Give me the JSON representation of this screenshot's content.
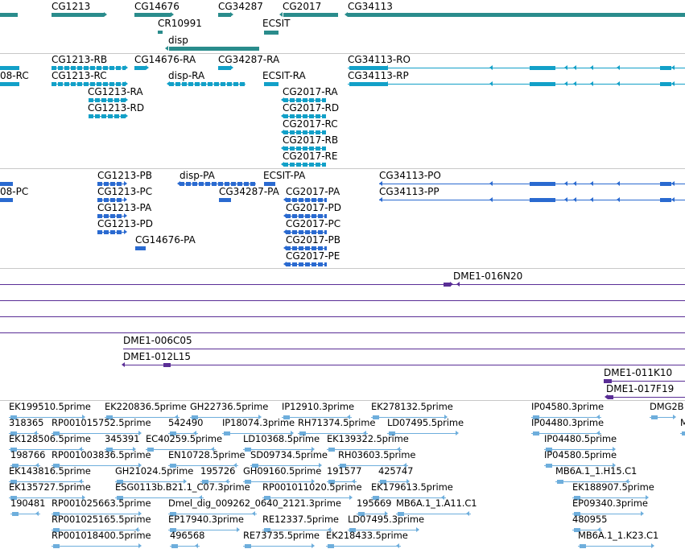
{
  "colors": {
    "gene": "#2a8c8c",
    "transcript": "#12a0c8",
    "protein": "#2a6ad0",
    "clone": "#5a2e96",
    "est": "#6eaedc",
    "divider": "#c8c8c8"
  },
  "genes": [
    "CG1213",
    "CG14676",
    "CG34287",
    "CG2017",
    "CG34113",
    "CR10991",
    "ECSIT",
    "disp"
  ],
  "transcripts": [
    "08-RC",
    "CG1213-RB",
    "CG1213-RC",
    "CG1213-RA",
    "CG1213-RD",
    "CG14676-RA",
    "disp-RA",
    "CG34287-RA",
    "ECSIT-RA",
    "CG2017-RA",
    "CG2017-RD",
    "CG2017-RC",
    "CG2017-RB",
    "CG2017-RE",
    "CG34113-RO",
    "CG34113-RP"
  ],
  "proteins": [
    "08-PC",
    "CG1213-PB",
    "CG1213-PC",
    "CG1213-PA",
    "CG1213-PD",
    "CG14676-PA",
    "disp-PA",
    "CG34287-PA",
    "ECSIT-PA",
    "CG2017-PA",
    "CG2017-PD",
    "CG2017-PC",
    "CG2017-PB",
    "CG2017-PE",
    "CG34113-PO",
    "CG34113-PP"
  ],
  "clones": [
    "DME1-016N20",
    "DME1-006C05",
    "DME1-012L15",
    "DME1-011K10",
    "DME1-017F19"
  ],
  "ests": [
    "EK199510.5prime",
    "EK220836.5prime",
    "GH22736.5prime",
    "IP12910.3prime",
    "EK278132.5prime",
    "IP04580.3prime",
    "DMG2B",
    "318365",
    "RP001015752.5prime",
    "542490",
    "IP18074.3prime",
    "RH71374.5prime",
    "LD07495.5prime",
    "IP04480.3prime",
    "M",
    "EK128506.5prime",
    "345391",
    "EC40259.5prime",
    "LD10368.5prime",
    "EK139322.5prime",
    "IP04480.5prime",
    "198766",
    "RP001003836.5prime",
    "EN10728.5prime",
    "SD09734.5prime",
    "RH03603.5prime",
    "IP04580.5prime",
    "EK143816.5prime",
    "GH21024.5prime",
    "195726",
    "GH09160.5prime",
    "191577",
    "425747",
    "MB6A.1_1.H15.C1",
    "EK135727.5prime",
    "ESG0113b.B21.1_C07.3prime",
    "RP001011020.5prime",
    "EK179613.5prime",
    "EK188907.5prime",
    "190481",
    "RP001025663.5prime",
    "Dmel_dig_009262_0640_2121.3prime",
    "195669",
    "MB6A.1_1.A11.C1",
    "EP09340.3prime",
    "RP001025165.5prime",
    "EP17940.3prime",
    "RE12337.5prime",
    "LD07495.3prime",
    "480955",
    "RP001018400.5prime",
    "496568",
    "RE73735.5prime",
    "EK218433.5prime",
    "MB6A.1_1.K23.C1"
  ]
}
